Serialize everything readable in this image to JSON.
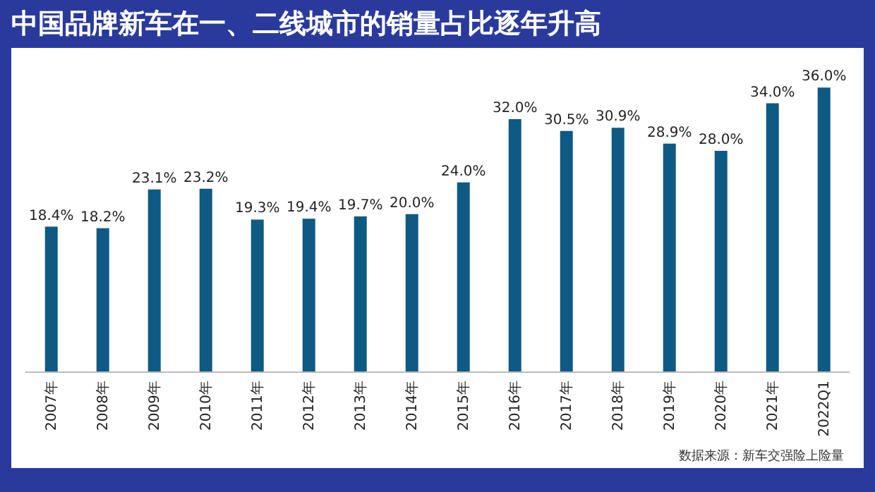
{
  "chart_data": {
    "type": "bar",
    "title": "中国品牌新车在一、二线城市的销量占比逐年升高",
    "categories": [
      "2007年",
      "2008年",
      "2009年",
      "2010年",
      "2011年",
      "2012年",
      "2013年",
      "2014年",
      "2015年",
      "2016年",
      "2017年",
      "2018年",
      "2019年",
      "2020年",
      "2021年",
      "2022Q1"
    ],
    "values": [
      18.4,
      18.2,
      23.1,
      23.2,
      19.3,
      19.4,
      19.7,
      20.0,
      24.0,
      32.0,
      30.5,
      30.9,
      28.9,
      28.0,
      34.0,
      36.0
    ],
    "value_labels": [
      "18.4%",
      "18.2%",
      "23.1%",
      "23.2%",
      "19.3%",
      "19.4%",
      "19.7%",
      "20.0%",
      "24.0%",
      "32.0%",
      "30.5%",
      "30.9%",
      "28.9%",
      "28.0%",
      "34.0%",
      "36.0%"
    ],
    "color": "#0f5a84",
    "tick_labels": "x",
    "grid": false,
    "annotations": [
      "数据来源：新车交强险上险量"
    ]
  }
}
